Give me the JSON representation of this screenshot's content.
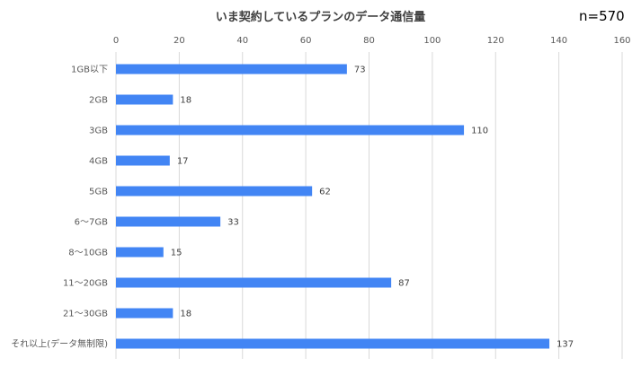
{
  "chart_data": {
    "type": "bar",
    "orientation": "horizontal",
    "title": "いま契約しているプランのデータ通信量",
    "annotation": "n=570",
    "categories": [
      "1GB以下",
      "2GB",
      "3GB",
      "4GB",
      "5GB",
      "6〜7GB",
      "8〜10GB",
      "11〜20GB",
      "21〜30GB",
      "それ以上(データ無制限)"
    ],
    "values": [
      73,
      18,
      110,
      17,
      62,
      33,
      15,
      87,
      18,
      137
    ],
    "xlim": [
      0,
      160
    ],
    "xticks": [
      0,
      20,
      40,
      60,
      80,
      100,
      120,
      140,
      160
    ],
    "xaxis_position": "top",
    "grid": true,
    "legend": "none",
    "bar_color": "#4285F4"
  }
}
